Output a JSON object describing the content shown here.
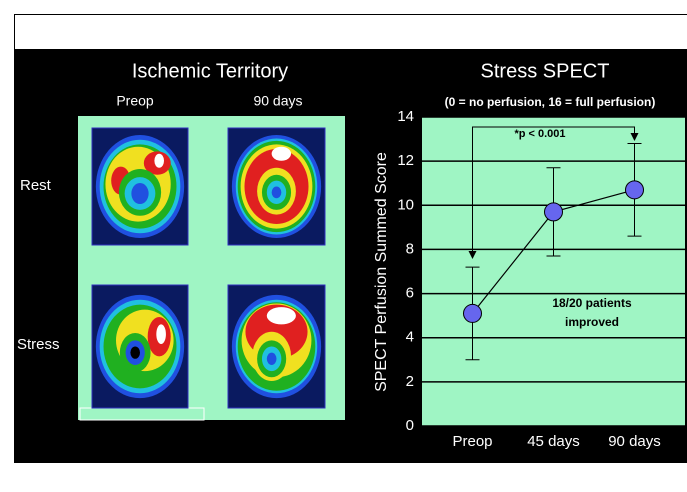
{
  "panel": {
    "title": "Ischemic Territory",
    "columns": [
      "Preop",
      "90 days"
    ],
    "rows": [
      "Rest",
      "Stress"
    ]
  },
  "chart_data": {
    "type": "line",
    "title": "Stress SPECT",
    "subtitle": "(0 = no perfusion, 16 = full perfusion)",
    "y_label": "SPECT Perfusion Summed Score",
    "categories": [
      "Preop",
      "45 days",
      "90 days"
    ],
    "series": [
      {
        "name": "Stress SPECT",
        "color": "#6666ee",
        "values": [
          5.1,
          9.7,
          10.7
        ],
        "errors": [
          2.1,
          2.0,
          2.1
        ]
      }
    ],
    "ylim": [
      0,
      14
    ],
    "yticks": [
      0,
      2,
      4,
      6,
      8,
      10,
      12,
      14
    ],
    "grid": true,
    "annotations": [
      "*p < 0.001",
      "18/20 patients",
      "improved"
    ]
  }
}
